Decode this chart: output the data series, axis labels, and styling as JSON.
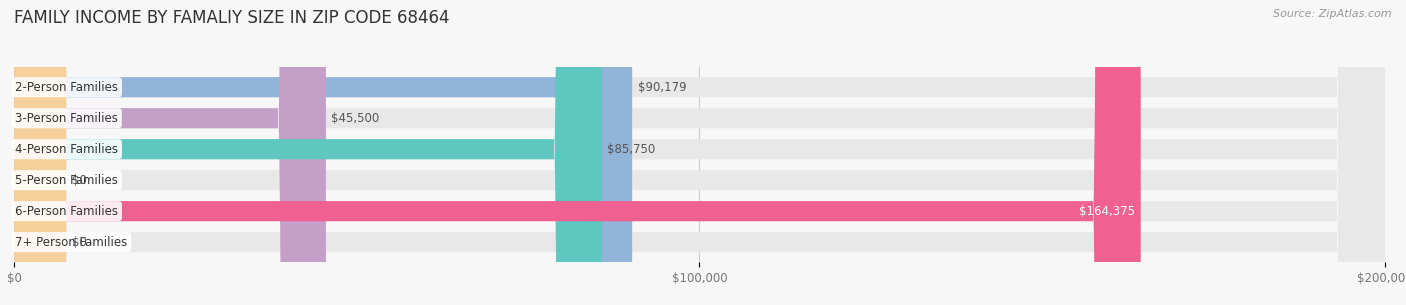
{
  "title": "FAMILY INCOME BY FAMALIY SIZE IN ZIP CODE 68464",
  "source": "Source: ZipAtlas.com",
  "categories": [
    "2-Person Families",
    "3-Person Families",
    "4-Person Families",
    "5-Person Families",
    "6-Person Families",
    "7+ Person Families"
  ],
  "values": [
    90179,
    45500,
    85750,
    0,
    164375,
    0
  ],
  "bar_colors": [
    "#92b4d8",
    "#c4a0c8",
    "#5ec8c0",
    "#b0b0e0",
    "#f06090",
    "#f5d09a"
  ],
  "label_colors": [
    "#555555",
    "#555555",
    "#555555",
    "#555555",
    "#ffffff",
    "#555555"
  ],
  "xlim": [
    0,
    200000
  ],
  "xticks": [
    0,
    100000,
    200000
  ],
  "xtick_labels": [
    "$0",
    "$100,000",
    "$200,000"
  ],
  "value_labels": [
    "$90,179",
    "$45,500",
    "$85,750",
    "$0",
    "$164,375",
    "$0"
  ],
  "background_color": "#f7f7f7",
  "bar_bg_color": "#e8e8e8",
  "title_fontsize": 12,
  "label_fontsize": 8.5,
  "value_fontsize": 8.5,
  "tick_fontsize": 8.5
}
